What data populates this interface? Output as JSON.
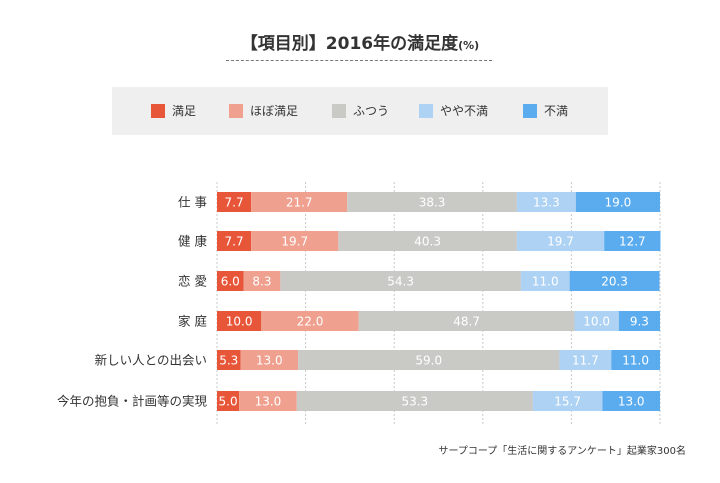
{
  "title": "【項目別】2016年の満足度",
  "title_unit": "(%)",
  "source": "サープコープ「生活に関するアンケート」起業家300名",
  "chart_data": {
    "type": "bar",
    "orientation": "horizontal",
    "stacked": true,
    "xlim": [
      0,
      100
    ],
    "grid": true,
    "legend_position": "top",
    "categories": [
      "仕 事",
      "健 康",
      "恋 愛",
      "家 庭",
      "新しい人との出会い",
      "今年の抱負・計画等の実現"
    ],
    "series": [
      {
        "name": "満足",
        "color": "#e8563a",
        "values": [
          7.7,
          7.7,
          6.0,
          10.0,
          5.3,
          5.0
        ]
      },
      {
        "name": "ほぼ満足",
        "color": "#f0a08f",
        "values": [
          21.7,
          19.7,
          8.3,
          22.0,
          13.0,
          13.0
        ]
      },
      {
        "name": "ふつう",
        "color": "#c9c9c6",
        "values": [
          38.3,
          40.3,
          54.3,
          48.7,
          59.0,
          53.3
        ]
      },
      {
        "name": "やや不満",
        "color": "#add2f4",
        "values": [
          13.3,
          19.7,
          11.0,
          10.0,
          11.7,
          15.7
        ]
      },
      {
        "name": "不満",
        "color": "#5aacee",
        "values": [
          19.0,
          12.7,
          20.3,
          9.3,
          11.0,
          13.0
        ]
      }
    ]
  }
}
